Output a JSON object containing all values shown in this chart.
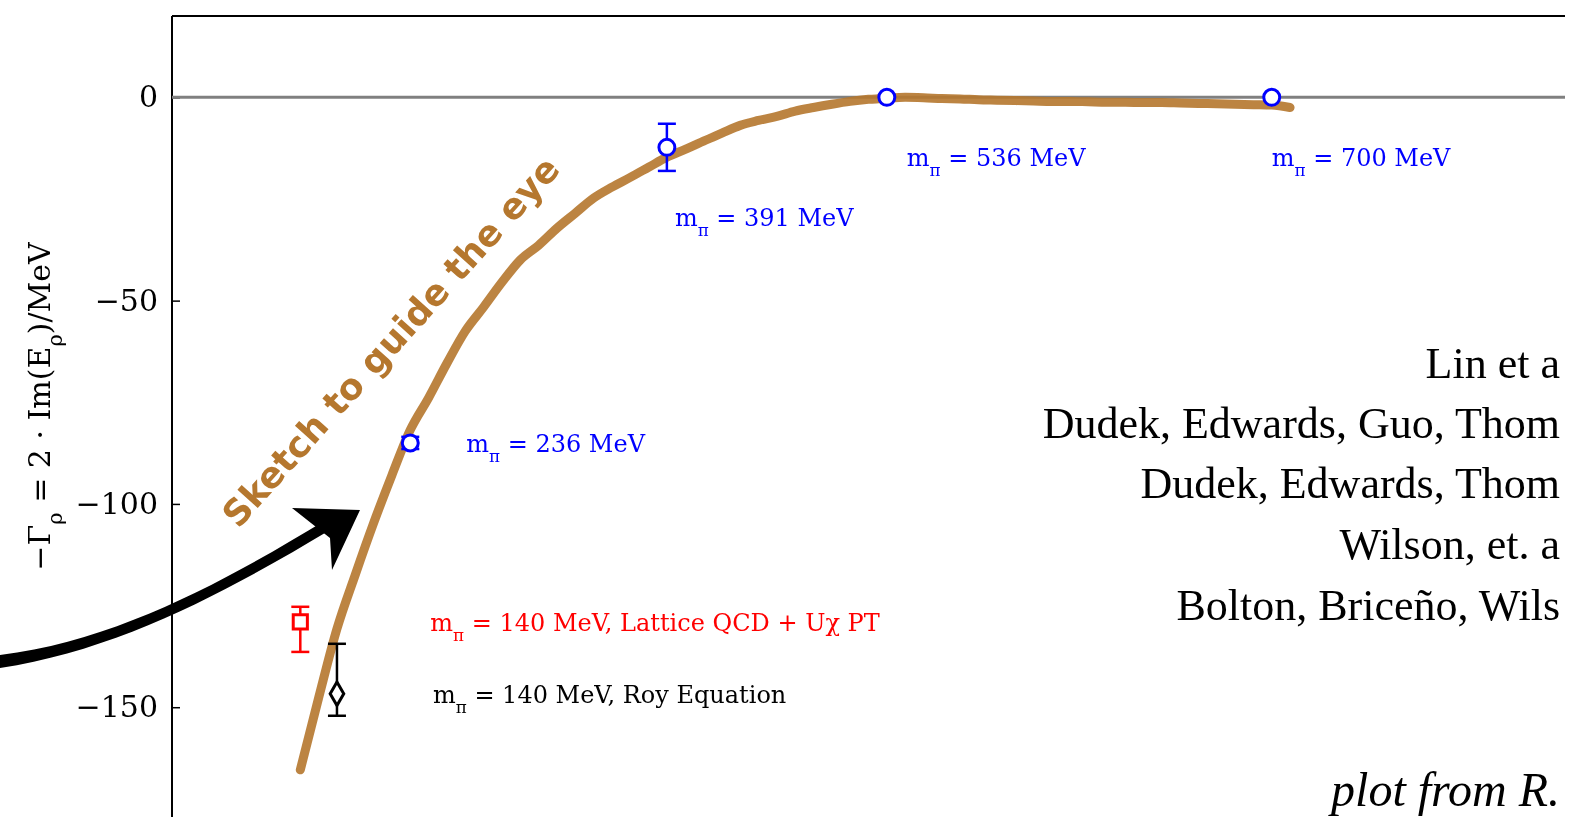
{
  "chart_data": {
    "type": "scatter",
    "ylabel": "−Γ$_{ρ}$ = 2 · Im(E$_{ρ}$)/MeV",
    "categories": [
      null,
      null,
      null,
      null,
      null,
      null,
      null,
      null,
      null,
      null,
      null,
      null,
      null,
      null,
      null,
      null,
      null,
      null,
      null,
      null,
      null,
      null,
      null,
      null,
      null,
      null,
      null,
      null,
      null,
      null,
      null,
      null,
      null,
      null,
      null,
      null,
      null,
      null,
      null,
      null,
      null,
      null,
      null,
      null,
      null,
      null,
      null,
      null,
      null,
      null,
      null,
      null,
      null,
      null,
      null,
      null,
      null,
      null,
      null,
      null,
      null,
      null,
      null,
      null,
      null,
      null,
      null,
      null,
      null,
      null,
      null,
      null,
      null,
      null,
      null,
      null,
      null
    ],
    "ylim": [
      -177,
      20
    ],
    "yticks": [
      {
        "value": 0,
        "label": "0"
      },
      {
        "value": -50,
        "label": "−50"
      },
      {
        "value": -100,
        "label": "−100"
      },
      {
        "value": -150,
        "label": "−150"
      }
    ],
    "tick_labels": "y",
    "ref_lines": [
      {
        "axis": "y",
        "value": 0,
        "color": "#808080"
      }
    ],
    "series": [
      {
        "type": "line",
        "color": "#b5772e",
        "values": [
          null,
          null,
          null,
          null,
          null,
          null,
          null,
          -165.4,
          -147.7,
          -130.7,
          -117.4,
          -104.7,
          -92.9,
          -81.8,
          -73.9,
          -65.4,
          -57.5,
          -51.6,
          -45.5,
          -40.0,
          -36.4,
          -32.2,
          -28.5,
          -24.8,
          -22.1,
          -19.7,
          -17.2,
          -14.7,
          -12.8,
          -10.8,
          -8.8,
          -6.9,
          -5.7,
          -4.7,
          -3.4,
          -2.5,
          -1.7,
          -1.0,
          -0.5,
          -0.2,
          0,
          -0.1,
          -0.3,
          -0.4,
          -0.6,
          -0.7,
          -0.8,
          -0.9,
          -1.0,
          -1.0,
          -1.1,
          -1.2,
          -1.2,
          -1.3,
          -1.3,
          -1.4,
          -1.5,
          -1.6,
          -1.7,
          -1.8,
          -1.9,
          -2.5,
          null,
          null,
          null,
          null,
          null,
          null,
          null,
          null,
          null,
          null,
          null,
          null,
          null,
          null,
          null
        ]
      },
      {
        "name": "m$_{π}$ = 236 MeV",
        "color": "#0000ff",
        "marker": "circle",
        "values": [
          null,
          null,
          null,
          null,
          null,
          null,
          null,
          null,
          null,
          null,
          null,
          null,
          null,
          -85,
          null,
          null,
          null,
          null,
          null,
          null,
          null,
          null,
          null,
          null,
          null,
          null,
          null,
          null,
          null,
          null,
          null,
          null,
          null,
          null,
          null,
          null,
          null,
          null,
          null,
          null,
          null,
          null,
          null,
          null,
          null,
          null,
          null,
          null,
          null,
          null,
          null,
          null,
          null,
          null,
          null,
          null,
          null,
          null,
          null,
          null,
          null,
          null,
          null,
          null,
          null,
          null,
          null,
          null,
          null,
          null,
          null,
          null,
          null,
          null,
          null,
          null,
          null
        ],
        "errors": [
          null,
          null,
          null,
          null,
          null,
          null,
          null,
          null,
          null,
          null,
          null,
          null,
          null,
          1.5,
          null,
          null,
          null,
          null,
          null,
          null,
          null,
          null,
          null,
          null,
          null,
          null,
          null,
          null,
          null,
          null,
          null,
          null,
          null,
          null,
          null,
          null,
          null,
          null,
          null,
          null,
          null,
          null,
          null,
          null,
          null,
          null,
          null,
          null,
          null,
          null,
          null,
          null,
          null,
          null,
          null,
          null,
          null,
          null,
          null,
          null,
          null,
          null,
          null,
          null,
          null,
          null,
          null,
          null,
          null,
          null,
          null,
          null,
          null,
          null,
          null,
          null,
          null
        ]
      },
      {
        "name": "m$_{π}$ = 391 MeV",
        "color": "#0000ff",
        "marker": "circle",
        "values": [
          null,
          null,
          null,
          null,
          null,
          null,
          null,
          null,
          null,
          null,
          null,
          null,
          null,
          null,
          null,
          null,
          null,
          null,
          null,
          null,
          null,
          null,
          null,
          null,
          null,
          null,
          null,
          -12.3,
          null,
          null,
          null,
          null,
          null,
          null,
          null,
          null,
          null,
          null,
          null,
          null,
          null,
          null,
          null,
          null,
          null,
          null,
          null,
          null,
          null,
          null,
          null,
          null,
          null,
          null,
          null,
          null,
          null,
          null,
          null,
          null,
          null,
          null,
          null,
          null,
          null,
          null,
          null,
          null,
          null,
          null,
          null,
          null,
          null,
          null,
          null,
          null,
          null
        ],
        "errors": [
          null,
          null,
          null,
          null,
          null,
          null,
          null,
          null,
          null,
          null,
          null,
          null,
          null,
          null,
          null,
          null,
          null,
          null,
          null,
          null,
          null,
          null,
          null,
          null,
          null,
          null,
          null,
          5.8,
          null,
          null,
          null,
          null,
          null,
          null,
          null,
          null,
          null,
          null,
          null,
          null,
          null,
          null,
          null,
          null,
          null,
          null,
          null,
          null,
          null,
          null,
          null,
          null,
          null,
          null,
          null,
          null,
          null,
          null,
          null,
          null,
          null,
          null,
          null,
          null,
          null,
          null,
          null,
          null,
          null,
          null,
          null,
          null,
          null,
          null,
          null,
          null,
          null
        ]
      },
      {
        "name": "m$_{π}$ = 536 MeV",
        "color": "#0000ff",
        "marker": "circle",
        "values": [
          null,
          null,
          null,
          null,
          null,
          null,
          null,
          null,
          null,
          null,
          null,
          null,
          null,
          null,
          null,
          null,
          null,
          null,
          null,
          null,
          null,
          null,
          null,
          null,
          null,
          null,
          null,
          null,
          null,
          null,
          null,
          null,
          null,
          null,
          null,
          null,
          null,
          null,
          null,
          0,
          null,
          null,
          null,
          null,
          null,
          null,
          null,
          null,
          null,
          null,
          null,
          null,
          null,
          null,
          null,
          null,
          null,
          null,
          null,
          null,
          null,
          null,
          null,
          null,
          null,
          null,
          null,
          null,
          null,
          null,
          null,
          null,
          null,
          null,
          null,
          null,
          null
        ]
      },
      {
        "name": "m$_{π}$ = 700 MeV",
        "color": "#0000ff",
        "marker": "circle",
        "values": [
          null,
          null,
          null,
          null,
          null,
          null,
          null,
          null,
          null,
          null,
          null,
          null,
          null,
          null,
          null,
          null,
          null,
          null,
          null,
          null,
          null,
          null,
          null,
          null,
          null,
          null,
          null,
          null,
          null,
          null,
          null,
          null,
          null,
          null,
          null,
          null,
          null,
          null,
          null,
          null,
          null,
          null,
          null,
          null,
          null,
          null,
          null,
          null,
          null,
          null,
          null,
          null,
          null,
          null,
          null,
          null,
          null,
          null,
          null,
          null,
          0,
          null,
          null,
          null,
          null,
          null,
          null,
          null,
          null,
          null,
          null,
          null,
          null,
          null,
          null,
          null,
          null
        ]
      },
      {
        "name": "m$_{π}$ = 140 MeV,  Lattice QCD + Uχ PT",
        "color": "#ff0000",
        "marker": "square",
        "values": [
          null,
          null,
          null,
          null,
          null,
          null,
          null,
          -129,
          null,
          null,
          null,
          null,
          null,
          null,
          null,
          null,
          null,
          null,
          null,
          null,
          null,
          null,
          null,
          null,
          null,
          null,
          null,
          null,
          null,
          null,
          null,
          null,
          null,
          null,
          null,
          null,
          null,
          null,
          null,
          null,
          null,
          null,
          null,
          null,
          null,
          null,
          null,
          null,
          null,
          null,
          null,
          null,
          null,
          null,
          null,
          null,
          null,
          null,
          null,
          null,
          null,
          null,
          null,
          null,
          null,
          null,
          null,
          null,
          null,
          null,
          null,
          null,
          null,
          null,
          null,
          null,
          null
        ],
        "errors": [
          null,
          null,
          null,
          null,
          null,
          null,
          null,
          [
            -136.4,
            -125.3
          ],
          null,
          null,
          null,
          null,
          null,
          null,
          null,
          null,
          null,
          null,
          null,
          null,
          null,
          null,
          null,
          null,
          null,
          null,
          null,
          null,
          null,
          null,
          null,
          null,
          null,
          null,
          null,
          null,
          null,
          null,
          null,
          null,
          null,
          null,
          null,
          null,
          null,
          null,
          null,
          null,
          null,
          null,
          null,
          null,
          null,
          null,
          null,
          null,
          null,
          null,
          null,
          null,
          null,
          null,
          null,
          null,
          null,
          null,
          null,
          null,
          null,
          null,
          null,
          null,
          null,
          null,
          null,
          null,
          null
        ]
      },
      {
        "name": "m$_{π}$ = 140 MeV,  Roy Equation",
        "color": "#000000",
        "marker": "diamond",
        "values": [
          null,
          null,
          null,
          null,
          null,
          null,
          null,
          null,
          null,
          -146.7,
          null,
          null,
          null,
          null,
          null,
          null,
          null,
          null,
          null,
          null,
          null,
          null,
          null,
          null,
          null,
          null,
          null,
          null,
          null,
          null,
          null,
          null,
          null,
          null,
          null,
          null,
          null,
          null,
          null,
          null,
          null,
          null,
          null,
          null,
          null,
          null,
          null,
          null,
          null,
          null,
          null,
          null,
          null,
          null,
          null,
          null,
          null,
          null,
          null,
          null,
          null,
          null,
          null,
          null,
          null,
          null,
          null,
          null,
          null,
          null,
          null,
          null,
          null,
          null,
          null,
          null,
          null
        ],
        "errors": [
          null,
          null,
          null,
          null,
          null,
          null,
          null,
          null,
          null,
          [
            -152.1,
            -134.4
          ],
          null,
          null,
          null,
          null,
          null,
          null,
          null,
          null,
          null,
          null,
          null,
          null,
          null,
          null,
          null,
          null,
          null,
          null,
          null,
          null,
          null,
          null,
          null,
          null,
          null,
          null,
          null,
          null,
          null,
          null,
          null,
          null,
          null,
          null,
          null,
          null,
          null,
          null,
          null,
          null,
          null,
          null,
          null,
          null,
          null,
          null,
          null,
          null,
          null,
          null,
          null,
          null,
          null,
          null,
          null,
          null,
          null,
          null,
          null,
          null,
          null,
          null,
          null,
          null,
          null,
          null,
          null
        ]
      }
    ],
    "annotations": [
      "Sketch to guide the eye",
      "Lin et a",
      "Dudek, Edwards, Guo, Thom",
      "Dudek, Edwards, Thom",
      "Wilson, et. a",
      "Bolton, Briceño, Wils",
      "plot from R."
    ]
  }
}
